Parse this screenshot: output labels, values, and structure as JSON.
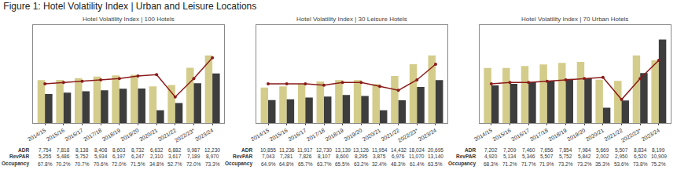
{
  "title": "Figure 1: Hotel Volatility Index | Urban and Leisure Locations",
  "chart_data": [
    {
      "type": "bar",
      "title": "Hotel Volatility Index | 100 Hotels",
      "categories": [
        "2014/15",
        "2015/16",
        "2016/17",
        "2017/18",
        "2018/19",
        "2019/20",
        "2020/21",
        "2021/22",
        "2022/23*",
        "2023/24"
      ],
      "series": [
        {
          "name": "ADR",
          "type": "bar",
          "color": "#d4cc8a",
          "values": [
            7754,
            7818,
            8138,
            8408,
            8603,
            8732,
            6632,
            6882,
            9987,
            12230
          ],
          "value_labels": [
            "7,754",
            "7,818",
            "8,138",
            "8,408",
            "8,603",
            "8,732",
            "6,632",
            "6,882",
            "9,987",
            "12,230"
          ]
        },
        {
          "name": "RevPAR",
          "type": "bar",
          "color": "#3d3d3d",
          "values": [
            5255,
            5486,
            5752,
            5934,
            6197,
            6247,
            2310,
            3617,
            7189,
            8970
          ],
          "value_labels": [
            "5,255",
            "5,486",
            "5,752",
            "5,934",
            "6,197",
            "6,247",
            "2,310",
            "3,617",
            "7,189",
            "8,970"
          ]
        },
        {
          "name": "Occupancy",
          "type": "table",
          "values": [
            67.8,
            70.2,
            70.7,
            70.6,
            72.0,
            71.5,
            34.8,
            52.7,
            72.0,
            73.3
          ],
          "value_labels": [
            "67.8%",
            "70.2%",
            "70.7%",
            "70.6%",
            "72.0%",
            "71.5%",
            "34.8%",
            "52.7%",
            "72.0%",
            "73.3%"
          ]
        },
        {
          "type": "line",
          "axis": "y2",
          "color": "#8b1a1a",
          "marker": "circle",
          "values": [
            100,
            101,
            102,
            103,
            104,
            106,
            107,
            90,
            104,
            120
          ]
        }
      ],
      "ylim": [
        0,
        17733.5
      ],
      "yticks": [],
      "y2lim": [
        70,
        145
      ],
      "y2ticks": [],
      "tick_labels": "x",
      "grid": false
    },
    {
      "type": "bar",
      "title": "Hotel Volatility Index | 30 Leisure Hotels",
      "categories": [
        "2014/15",
        "2015/16",
        "2016/17",
        "2017/18",
        "2018/19",
        "2019/20",
        "2020/21",
        "2021/22",
        "2022/23*",
        "2023/24"
      ],
      "series": [
        {
          "name": "ADR",
          "type": "bar",
          "color": "#d4cc8a",
          "values": [
            10855,
            11236,
            11917,
            12730,
            13139,
            13126,
            11954,
            14432,
            18024,
            20695
          ],
          "value_labels": [
            "10,855",
            "11,236",
            "11,917",
            "12,730",
            "13,139",
            "13,126",
            "11,954",
            "14,432",
            "18,024",
            "20,695"
          ]
        },
        {
          "name": "RevPAR",
          "type": "bar",
          "color": "#3d3d3d",
          "values": [
            7043,
            7281,
            7826,
            8107,
            8600,
            8295,
            3875,
            6976,
            11070,
            13140
          ],
          "value_labels": [
            "7,043",
            "7,281",
            "7,826",
            "8,107",
            "8,600",
            "8,295",
            "3,875",
            "6,976",
            "11,070",
            "13,140"
          ]
        },
        {
          "name": "Occupancy",
          "type": "table",
          "values": [
            64.9,
            64.8,
            65.7,
            63.7,
            65.5,
            63.2,
            32.4,
            48.3,
            61.4,
            63.5
          ],
          "value_labels": [
            "64.9%",
            "64.8%",
            "65.7%",
            "63.7%",
            "65.5%",
            "63.2%",
            "32.4%",
            "48.3%",
            "61.4%",
            "63.5%"
          ]
        },
        {
          "type": "line",
          "axis": "y2",
          "color": "#8b1a1a",
          "marker": "circle",
          "values": [
            100,
            100,
            100,
            99,
            101,
            101,
            98,
            95,
            103,
            115
          ]
        }
      ],
      "ylim": [
        0,
        30007.75
      ],
      "yticks": [],
      "y2lim": [
        70,
        145
      ],
      "y2ticks": [],
      "tick_labels": "x",
      "grid": false
    },
    {
      "type": "bar",
      "title": "Hotel Volatility Index | 70 Urban Hotels",
      "categories": [
        "2014/15",
        "2015/16",
        "2016/17",
        "2017/18",
        "2018/19",
        "2019/20",
        "2020/21",
        "2021/22",
        "2022/23*",
        "2023/24"
      ],
      "series": [
        {
          "name": "ADR",
          "type": "bar",
          "color": "#d4cc8a",
          "values": [
            7202,
            7209,
            7460,
            7656,
            7854,
            7984,
            5669,
            5507,
            8834,
            8199
          ],
          "value_labels": [
            "7,202",
            "7,209",
            "7,460",
            "7,656",
            "7,854",
            "7,984",
            "5,669",
            "5,507",
            "8,834",
            "8,199"
          ]
        },
        {
          "name": "RevPAR",
          "type": "bar",
          "color": "#3d3d3d",
          "values": [
            4920,
            5134,
            5346,
            5507,
            5752,
            5842,
            2002,
            2950,
            6520,
            10909
          ],
          "value_labels": [
            "4,920",
            "5,134",
            "5,346",
            "5,507",
            "5,752",
            "5,842",
            "2,002",
            "2,950",
            "6,520",
            "10,909"
          ]
        },
        {
          "name": "Occupancy",
          "type": "table",
          "values": [
            68.3,
            71.2,
            71.7,
            71.9,
            73.2,
            73.2,
            35.3,
            53.6,
            73.8,
            75.2
          ],
          "value_labels": [
            "68.3%",
            "71.2%",
            "71.7%",
            "71.9%",
            "73.2%",
            "73.2%",
            "35.3%",
            "53.6%",
            "73.8%",
            "75.2%"
          ]
        },
        {
          "type": "line",
          "axis": "y2",
          "color": "#8b1a1a",
          "marker": "circle",
          "values": [
            100,
            101,
            101,
            102,
            103,
            104,
            105,
            88,
            104,
            118
          ]
        }
      ],
      "ylim": [
        0,
        12809.3
      ],
      "yticks": [],
      "y2lim": [
        70,
        145
      ],
      "y2ticks": [],
      "tick_labels": "x",
      "grid": false
    }
  ]
}
